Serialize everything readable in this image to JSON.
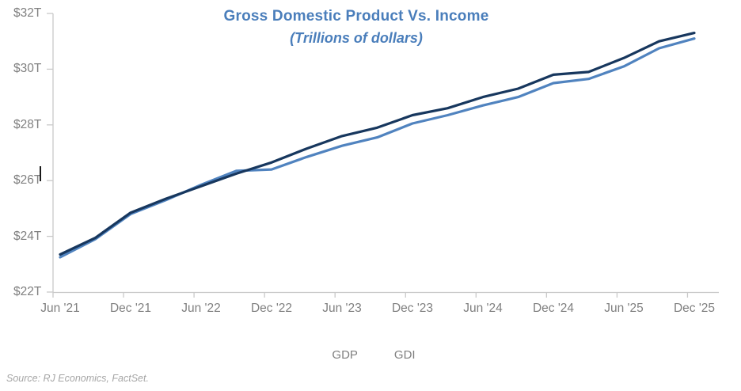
{
  "title": "Gross Domestic Product Vs. Income",
  "subtitle": "(Trillions of dollars)",
  "source": "Source: RJ Economics, FactSet.",
  "colors": {
    "title_text": "#4A7EBB",
    "gdp_line": "#17375E",
    "gdi_line": "#5083BF",
    "axis": "#C9C9C9",
    "axis_labels": "#808080",
    "legend_text": "#7F7F7F",
    "source_text": "#A6A6A6"
  },
  "chart_data": {
    "type": "line",
    "title": "Gross Domestic Product Vs. Income",
    "subtitle": "(Trillions of dollars)",
    "x": [
      "Jun '21",
      "Sep '21",
      "Dec '21",
      "Mar '22",
      "Jun '22",
      "Sep '22",
      "Dec '22",
      "Mar '23",
      "Jun '23",
      "Sep '23",
      "Dec '23",
      "Mar '24",
      "Jun '24",
      "Sep '24",
      "Dec '24",
      "Mar '25",
      "Jun '25",
      "Sep '25",
      "Dec '25"
    ],
    "x_axis_labels": [
      "Jun '21",
      "Dec '21",
      "Jun '22",
      "Dec '22",
      "Jun '23",
      "Dec '23",
      "Jun '24",
      "Dec '24",
      "Jun '25",
      "Dec '25"
    ],
    "y_tick_labels": [
      "$32T",
      "$30T",
      "$28T",
      "$26T",
      "$24T",
      "$22T"
    ],
    "ylim": [
      22,
      32
    ],
    "units": "Trillions of dollars",
    "grid": false,
    "legend_position": "bottom",
    "series": [
      {
        "name": "GDP",
        "color": "#17375E",
        "values": [
          23.35,
          23.95,
          24.85,
          25.35,
          25.8,
          26.25,
          26.65,
          27.15,
          27.6,
          27.9,
          28.35,
          28.6,
          29.0,
          29.3,
          29.8,
          29.9,
          30.4,
          31.0,
          31.3
        ]
      },
      {
        "name": "GDI",
        "color": "#5083BF",
        "values": [
          23.25,
          23.9,
          24.8,
          25.3,
          25.85,
          26.35,
          26.4,
          26.85,
          27.25,
          27.55,
          28.05,
          28.35,
          28.7,
          29.0,
          29.5,
          29.65,
          30.1,
          30.75,
          31.1
        ]
      }
    ]
  }
}
